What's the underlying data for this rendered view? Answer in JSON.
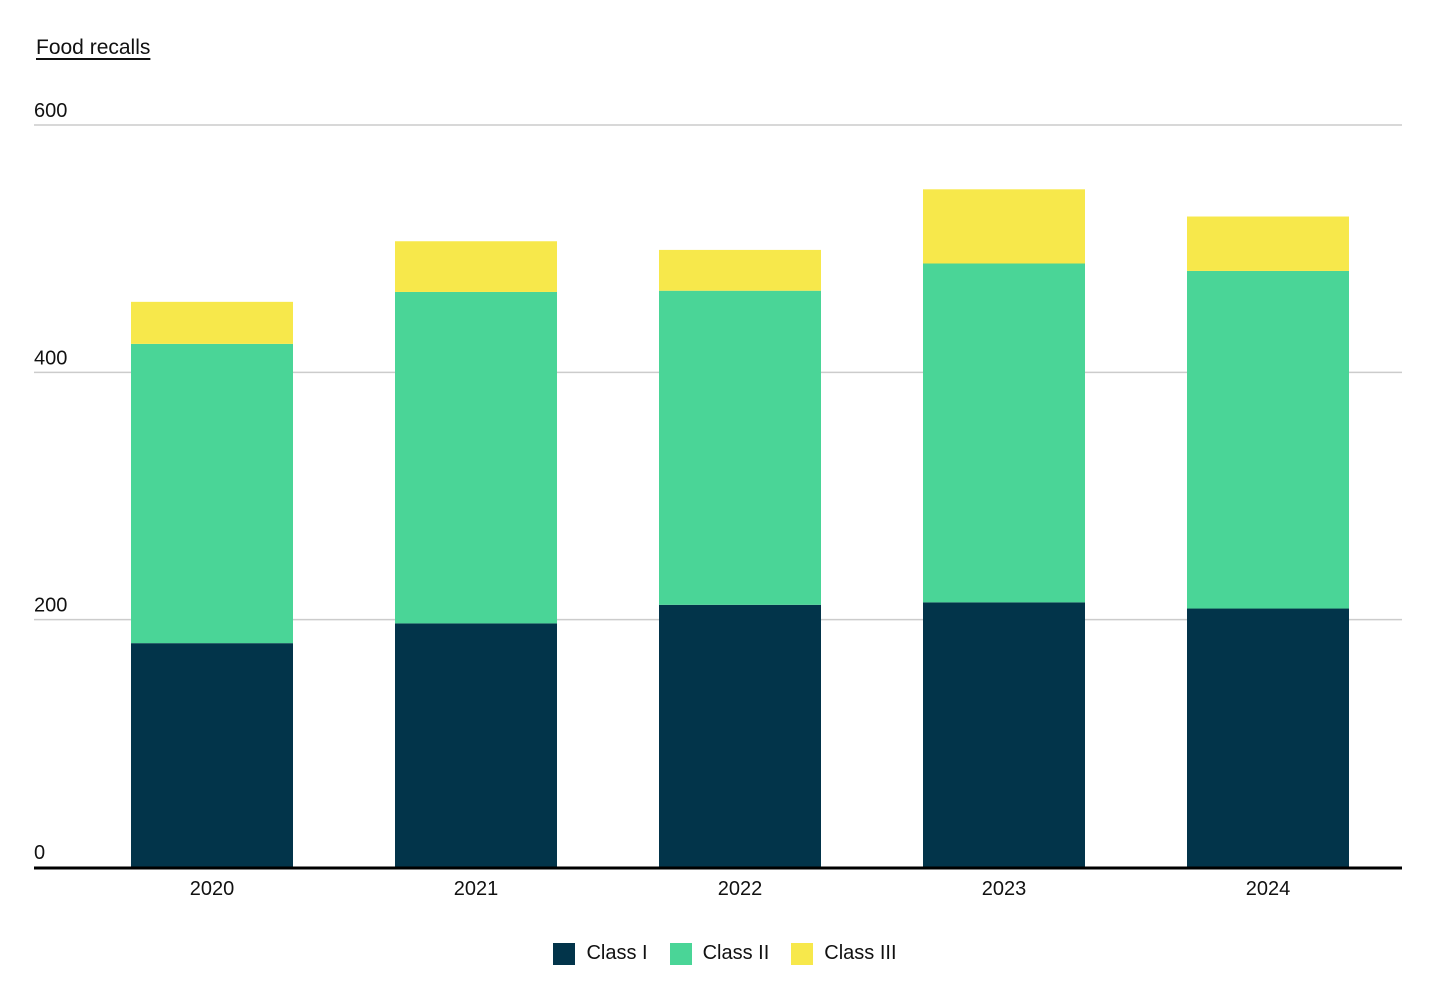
{
  "chart_data": {
    "type": "bar",
    "stacked": true,
    "title": "Food recalls",
    "xlabel": "",
    "ylabel": "",
    "ylim": [
      0,
      600
    ],
    "yticks": [
      0,
      200,
      400,
      600
    ],
    "grid": true,
    "legend_position": "bottom-center",
    "categories": [
      "2020",
      "2021",
      "2022",
      "2023",
      "2024"
    ],
    "series": [
      {
        "name": "Class I",
        "color": "#02344a",
        "values": [
          181,
          197,
          212,
          214,
          209
        ]
      },
      {
        "name": "Class II",
        "color": "#4ad597",
        "values": [
          242,
          268,
          254,
          274,
          273
        ]
      },
      {
        "name": "Class III",
        "color": "#f7e84b",
        "values": [
          34,
          41,
          33,
          60,
          44
        ]
      }
    ]
  }
}
